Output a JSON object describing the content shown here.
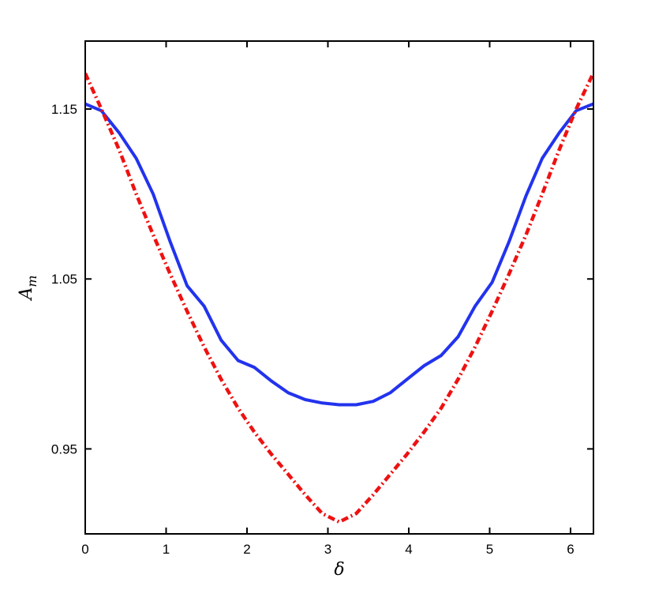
{
  "chart_data": {
    "type": "line",
    "xlabel": "δ",
    "ylabel": "A",
    "ylabel_sub": "m",
    "xlim": [
      0,
      6.2832
    ],
    "ylim": [
      0.9,
      1.19
    ],
    "xticks": [
      0,
      1,
      2,
      3,
      4,
      5,
      6
    ],
    "xtick_labels": [
      "0",
      "1",
      "2",
      "3",
      "4",
      "5",
      "6"
    ],
    "yticks": [
      0.95,
      1.05,
      1.15
    ],
    "ytick_labels": [
      "0.95",
      "1.05",
      "1.15"
    ],
    "grid": false,
    "series": [
      {
        "color": "#2233ee",
        "style": "solid",
        "x": [
          0,
          0.2,
          0.42,
          0.63,
          0.84,
          1.05,
          1.26,
          1.47,
          1.68,
          1.89,
          2.09,
          2.3,
          2.51,
          2.72,
          2.93,
          3.14,
          3.35,
          3.56,
          3.77,
          3.98,
          4.19,
          4.4,
          4.61,
          4.82,
          5.03,
          5.24,
          5.45,
          5.65,
          5.86,
          6.07,
          6.28
        ],
        "y": [
          1.153,
          1.149,
          1.136,
          1.121,
          1.1,
          1.072,
          1.046,
          1.034,
          1.014,
          1.002,
          0.998,
          0.99,
          0.983,
          0.979,
          0.977,
          0.976,
          0.976,
          0.978,
          0.983,
          0.991,
          0.999,
          1.005,
          1.016,
          1.034,
          1.048,
          1.072,
          1.099,
          1.121,
          1.136,
          1.149,
          1.153
        ]
      },
      {
        "color": "#ee1111",
        "style": "dash-dot",
        "x": [
          0,
          0.2,
          0.42,
          0.63,
          0.84,
          1.05,
          1.26,
          1.47,
          1.68,
          1.89,
          2.09,
          2.3,
          2.51,
          2.72,
          2.93,
          3.14,
          3.35,
          3.56,
          3.77,
          3.98,
          4.19,
          4.4,
          4.61,
          4.82,
          5.03,
          5.24,
          5.45,
          5.65,
          5.86,
          6.07,
          6.28
        ],
        "y": [
          1.171,
          1.15,
          1.126,
          1.1,
          1.076,
          1.053,
          1.031,
          1.01,
          0.991,
          0.974,
          0.96,
          0.947,
          0.935,
          0.923,
          0.912,
          0.907,
          0.912,
          0.923,
          0.935,
          0.947,
          0.96,
          0.974,
          0.991,
          1.01,
          1.031,
          1.053,
          1.076,
          1.1,
          1.126,
          1.15,
          1.171
        ]
      }
    ]
  }
}
